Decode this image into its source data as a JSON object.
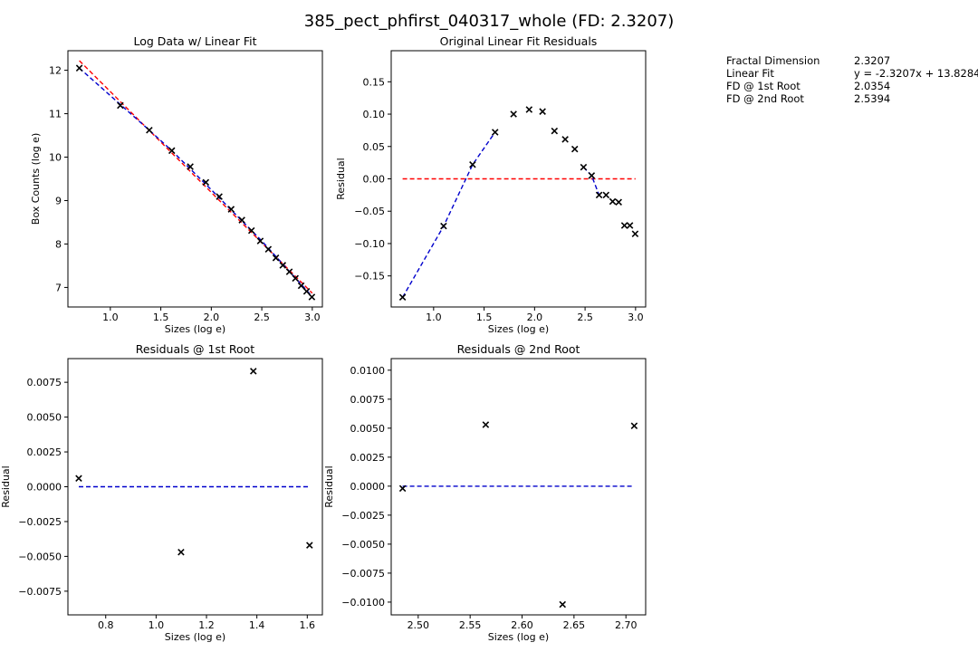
{
  "figure": {
    "title": "385_pect_phfirst_040317_whole (FD: 2.3207)"
  },
  "info": [
    {
      "label": "Fractal Dimension",
      "value": "2.3207"
    },
    {
      "label": "Linear Fit",
      "value": "y = -2.3207x + 13.8284"
    },
    {
      "label": "FD @ 1st Root",
      "value": "2.0354"
    },
    {
      "label": "FD @ 2nd Root",
      "value": "2.5394"
    }
  ],
  "colors": {
    "points": "#000000",
    "red_line": "#ff0000",
    "blue_line": "#0000cc"
  },
  "chart_data": [
    {
      "id": "log-data",
      "type": "scatter",
      "title": "Log Data w/ Linear Fit",
      "xlabel": "Sizes (log e)",
      "ylabel": "Box Counts (log e)",
      "xlim": [
        0.58,
        3.1
      ],
      "ylim": [
        6.55,
        12.45
      ],
      "xticks": [
        1.0,
        1.5,
        2.0,
        2.5,
        3.0
      ],
      "xtick_labels": [
        "1.0",
        "1.5",
        "2.0",
        "2.5",
        "3.0"
      ],
      "yticks": [
        7,
        8,
        9,
        10,
        11,
        12
      ],
      "ytick_labels": [
        "7",
        "8",
        "9",
        "10",
        "11",
        "12"
      ],
      "grid": false,
      "points": {
        "marker": "x",
        "x": [
          0.693,
          1.099,
          1.386,
          1.609,
          1.792,
          1.946,
          2.079,
          2.197,
          2.303,
          2.398,
          2.485,
          2.565,
          2.639,
          2.708,
          2.773,
          2.833,
          2.89,
          2.944,
          2.996
        ],
        "y": [
          12.05,
          11.19,
          10.62,
          10.15,
          9.78,
          9.42,
          9.09,
          8.8,
          8.55,
          8.31,
          8.07,
          7.88,
          7.68,
          7.51,
          7.36,
          7.21,
          7.04,
          6.91,
          6.78
        ]
      },
      "lines": [
        {
          "color": "#ff0000",
          "style": "dashed",
          "x": [
            0.693,
            3.0
          ],
          "y": [
            12.22,
            6.87
          ]
        },
        {
          "color": "#0000cc",
          "style": "dashed",
          "x": [
            0.693,
            1.386,
            1.609,
            2.0,
            2.5,
            2.996
          ],
          "y": [
            12.05,
            10.62,
            10.15,
            9.25,
            8.07,
            6.8
          ]
        }
      ]
    },
    {
      "id": "orig-residuals",
      "type": "scatter",
      "title": "Original Linear Fit Residuals",
      "xlabel": "Sizes (log e)",
      "ylabel": "Residual",
      "xlim": [
        0.58,
        3.1
      ],
      "ylim": [
        -0.198,
        0.198
      ],
      "xticks": [
        1.0,
        1.5,
        2.0,
        2.5,
        3.0
      ],
      "xtick_labels": [
        "1.0",
        "1.5",
        "2.0",
        "2.5",
        "3.0"
      ],
      "yticks": [
        0.15,
        0.1,
        0.05,
        0.0,
        -0.05,
        -0.1,
        -0.15
      ],
      "ytick_labels": [
        "0.15",
        "0.10",
        "0.05",
        "0.00",
        "−0.05",
        "−0.10",
        "−0.15"
      ],
      "grid": false,
      "points": {
        "marker": "x",
        "x": [
          0.693,
          1.099,
          1.386,
          1.609,
          1.792,
          1.946,
          2.079,
          2.197,
          2.303,
          2.398,
          2.485,
          2.565,
          2.639,
          2.708,
          2.773,
          2.833,
          2.89,
          2.944,
          2.996
        ],
        "y": [
          -0.183,
          -0.073,
          0.022,
          0.072,
          0.1,
          0.107,
          0.104,
          0.074,
          0.061,
          0.046,
          0.018,
          0.005,
          -0.025,
          -0.025,
          -0.035,
          -0.036,
          -0.072,
          -0.072,
          -0.085
        ]
      },
      "lines": [
        {
          "color": "#ff0000",
          "style": "dashed",
          "x": [
            0.693,
            3.0
          ],
          "y": [
            0.0,
            0.0
          ]
        },
        {
          "color": "#0000cc",
          "style": "dashed",
          "x": [
            0.693,
            1.099,
            1.386,
            1.609
          ],
          "y": [
            -0.183,
            -0.073,
            0.022,
            0.072
          ]
        },
        {
          "color": "#0000cc",
          "style": "dashed",
          "x": [
            2.485,
            2.565,
            2.639
          ],
          "y": [
            0.018,
            0.005,
            -0.025
          ]
        }
      ]
    },
    {
      "id": "res-1st-root",
      "type": "scatter",
      "title": "Residuals @ 1st Root",
      "xlabel": "Sizes (log e)",
      "ylabel": "Residual",
      "xlim": [
        0.65,
        1.66
      ],
      "ylim": [
        -0.0092,
        0.0092
      ],
      "xticks": [
        0.8,
        1.0,
        1.2,
        1.4,
        1.6
      ],
      "xtick_labels": [
        "0.8",
        "1.0",
        "1.2",
        "1.4",
        "1.6"
      ],
      "yticks": [
        0.0075,
        0.005,
        0.0025,
        0.0,
        -0.0025,
        -0.005,
        -0.0075
      ],
      "ytick_labels": [
        "0.0075",
        "0.0050",
        "0.0025",
        "0.0000",
        "−0.0025",
        "−0.0050",
        "−0.0075"
      ],
      "grid": false,
      "points": {
        "marker": "x",
        "x": [
          0.693,
          1.099,
          1.386,
          1.609
        ],
        "y": [
          0.0006,
          -0.0047,
          0.0083,
          -0.0042
        ]
      },
      "lines": [
        {
          "color": "#0000cc",
          "style": "dashed",
          "x": [
            0.693,
            1.609
          ],
          "y": [
            0.0,
            0.0
          ]
        }
      ]
    },
    {
      "id": "res-2nd-root",
      "type": "scatter",
      "title": "Residuals @ 2nd Root",
      "xlabel": "Sizes (log e)",
      "ylabel": "Residual",
      "xlim": [
        2.474,
        2.719
      ],
      "ylim": [
        -0.0111,
        0.011
      ],
      "xticks": [
        2.5,
        2.55,
        2.6,
        2.65,
        2.7
      ],
      "xtick_labels": [
        "2.50",
        "2.55",
        "2.60",
        "2.65",
        "2.70"
      ],
      "yticks": [
        0.01,
        0.0075,
        0.005,
        0.0025,
        0.0,
        -0.0025,
        -0.005,
        -0.0075,
        -0.01
      ],
      "ytick_labels": [
        "0.0100",
        "0.0075",
        "0.0050",
        "0.0025",
        "0.0000",
        "−0.0025",
        "−0.0050",
        "−0.0075",
        "−0.0100"
      ],
      "grid": false,
      "points": {
        "marker": "x",
        "x": [
          2.485,
          2.565,
          2.639,
          2.708
        ],
        "y": [
          -0.0002,
          0.0053,
          -0.0102,
          0.0052
        ]
      },
      "lines": [
        {
          "color": "#0000cc",
          "style": "dashed",
          "x": [
            2.485,
            2.708
          ],
          "y": [
            0.0,
            0.0
          ]
        }
      ]
    }
  ]
}
